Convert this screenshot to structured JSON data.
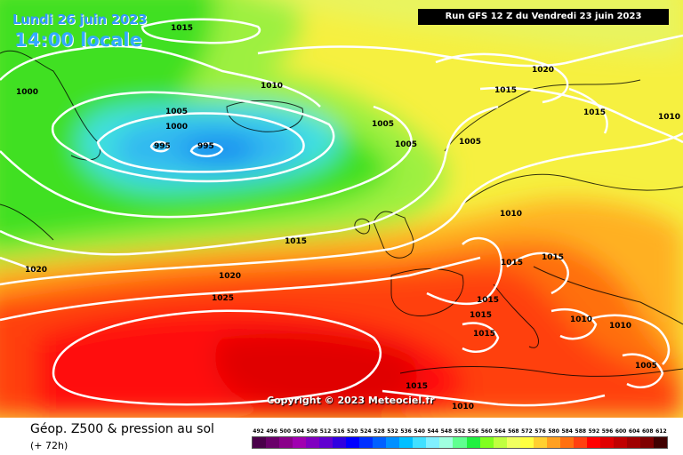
{
  "header": {
    "date": "Lundi 26 juin 2023",
    "local_time": "14:00 locale",
    "run_info": "Run GFS 12 Z du Vendredi 23 juin 2023"
  },
  "copyright": "Copyright © 2023 Meteociel.fr",
  "footer": {
    "title": "Géop. Z500 & pression au sol",
    "lead_time": "(+ 72h)"
  },
  "scale": {
    "ticks": [
      "492",
      "496",
      "500",
      "504",
      "508",
      "512",
      "516",
      "520",
      "524",
      "528",
      "532",
      "536",
      "540",
      "544",
      "548",
      "552",
      "556",
      "560",
      "564",
      "568",
      "572",
      "576",
      "580",
      "584",
      "588",
      "592",
      "596",
      "600",
      "604",
      "608",
      "612"
    ],
    "colors": [
      "#4a004a",
      "#6a006a",
      "#8a008a",
      "#a000b0",
      "#8000c0",
      "#6000d0",
      "#3000e0",
      "#0000ff",
      "#0030ff",
      "#0060ff",
      "#0090ff",
      "#00c0ff",
      "#40e0ff",
      "#80f0ff",
      "#a0ffe0",
      "#60ff90",
      "#20f040",
      "#80ff20",
      "#c0ff40",
      "#f0ff60",
      "#ffff40",
      "#ffd030",
      "#ffa020",
      "#ff7010",
      "#ff4010",
      "#ff0000",
      "#e00000",
      "#c00000",
      "#a00000",
      "#800000",
      "#400000"
    ]
  },
  "isobar_labels": [
    "1015",
    "1010",
    "1000",
    "1005",
    "1000",
    "995",
    "995",
    "1005",
    "1005",
    "1005",
    "1020",
    "1015",
    "1015",
    "1015",
    "1010",
    "1015",
    "1015",
    "1020",
    "1025",
    "1015",
    "1015",
    "1015",
    "1010",
    "1010",
    "1015",
    "1005",
    "1010",
    "1020",
    "1010"
  ],
  "colors": {
    "run_box_bg": "#000000",
    "date_text": "#3399ff",
    "isobar": "#ffffff"
  }
}
